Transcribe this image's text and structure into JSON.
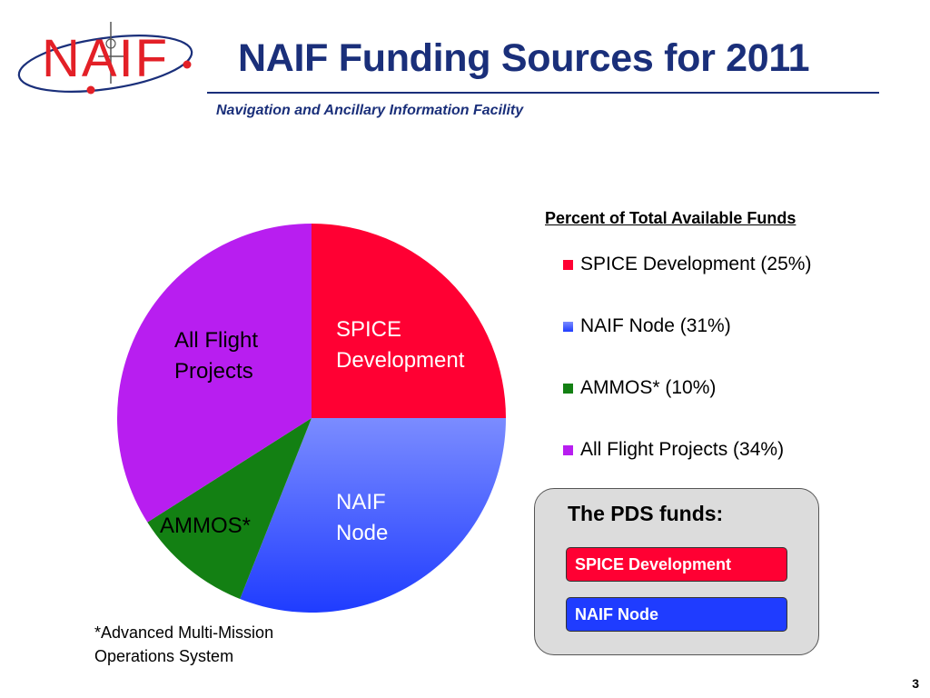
{
  "header": {
    "logo_text": "NAIF",
    "title": "NAIF Funding Sources for 2011",
    "subtitle": "Navigation and Ancillary Information Facility"
  },
  "colors": {
    "title_blue": "#1a2f7a",
    "logo_red": "#e32027",
    "spice": "#ff0033",
    "naif_top": "#7b8cff",
    "naif_bottom": "#1f3cff",
    "ammos": "#138013",
    "flight": "#b81ef0"
  },
  "chart_data": {
    "type": "pie",
    "title": "Percent of Total Available Funds",
    "slices": [
      {
        "name": "SPICE Development",
        "value": 25,
        "color": "#ff0033",
        "label": [
          "SPICE",
          "Development"
        ],
        "label_color": "#ffffff"
      },
      {
        "name": "NAIF Node",
        "value": 31,
        "color": "#4b63ff",
        "label": [
          "NAIF",
          "Node"
        ],
        "label_color": "#ffffff"
      },
      {
        "name": "AMMOS*",
        "value": 10,
        "color": "#138013",
        "label": [
          "AMMOS*"
        ],
        "label_color": "#000000"
      },
      {
        "name": "All Flight Projects",
        "value": 34,
        "color": "#b81ef0",
        "label": [
          "All Flight",
          "Projects"
        ],
        "label_color": "#000000"
      }
    ],
    "legend": [
      "SPICE Development (25%)",
      "NAIF Node (31%)",
      "AMMOS* (10%)",
      "All Flight Projects (34%)"
    ],
    "legend_position": "right"
  },
  "footnote": "*Advanced Multi-Mission Operations System",
  "pds_box": {
    "title": "The PDS funds:",
    "items": [
      "SPICE Development",
      "NAIF Node"
    ]
  },
  "page_number": "3"
}
